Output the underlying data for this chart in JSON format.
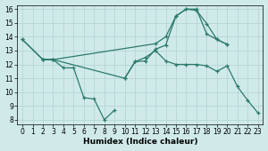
{
  "xlabel": "Humidex (Indice chaleur)",
  "bg_color": "#d0eaea",
  "grid_color": "#b8d4d4",
  "line_color": "#2a7a6a",
  "xlim": [
    -0.5,
    23.5
  ],
  "ylim": [
    7.7,
    16.3
  ],
  "xticks": [
    0,
    1,
    2,
    3,
    4,
    5,
    6,
    7,
    8,
    9,
    10,
    11,
    12,
    13,
    14,
    15,
    16,
    17,
    18,
    19,
    20,
    21,
    22,
    23
  ],
  "yticks": [
    8,
    9,
    10,
    11,
    12,
    13,
    14,
    15,
    16
  ],
  "series": [
    {
      "x": [
        0,
        2,
        3,
        13,
        14,
        15,
        16,
        17,
        18,
        19,
        20
      ],
      "y": [
        13.8,
        12.35,
        12.35,
        13.5,
        14.0,
        15.5,
        16.0,
        15.9,
        14.95,
        13.8,
        13.45
      ]
    },
    {
      "x": [
        2,
        3,
        4,
        5,
        6,
        7,
        8,
        9
      ],
      "y": [
        12.35,
        12.35,
        11.75,
        11.75,
        9.6,
        9.5,
        8.0,
        8.7
      ]
    },
    {
      "x": [
        0,
        2,
        3,
        10,
        11,
        12,
        13,
        14,
        15,
        16,
        17,
        18,
        19,
        20,
        21,
        22,
        23
      ],
      "y": [
        13.8,
        12.35,
        12.35,
        11.0,
        12.2,
        12.5,
        13.0,
        12.25,
        12.0,
        12.0,
        12.0,
        11.9,
        11.5,
        11.9,
        10.4,
        9.4,
        8.5
      ]
    },
    {
      "x": [
        10,
        11,
        12,
        13,
        14,
        15,
        16,
        17,
        18,
        19,
        20
      ],
      "y": [
        11.0,
        12.2,
        12.25,
        13.1,
        13.4,
        15.5,
        16.0,
        16.0,
        14.2,
        13.8,
        13.45
      ]
    }
  ]
}
